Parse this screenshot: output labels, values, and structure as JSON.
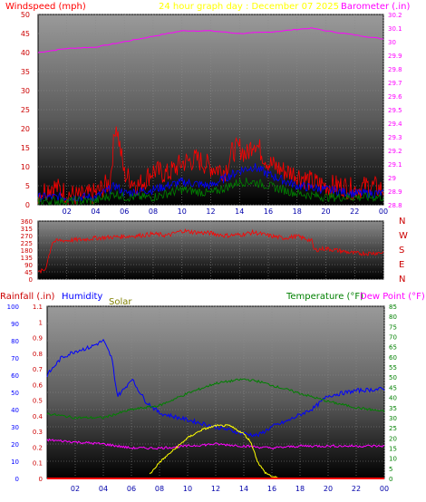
{
  "chart_data": [
    {
      "type": "line",
      "header": {
        "left": "Windspeed (mph)",
        "center": "24 hour graph day : December 07 2025",
        "right": "Barometer (.in)"
      },
      "x_ticks": [
        "02",
        "04",
        "06",
        "08",
        "10",
        "12",
        "14",
        "16",
        "18",
        "20",
        "22",
        "00"
      ],
      "y_left": {
        "range": [
          0,
          50
        ],
        "ticks": [
          "0",
          "5",
          "10",
          "15",
          "20",
          "25",
          "30",
          "35",
          "40",
          "45",
          "50"
        ]
      },
      "y_right": {
        "range": [
          28.8,
          30.2
        ],
        "ticks": [
          "28.8",
          "28.9",
          "29",
          "29.1",
          "29.2",
          "29.3",
          "29.4",
          "29.5",
          "29.6",
          "29.7",
          "29.8",
          "29.9",
          "30",
          "30.1",
          "30.2"
        ]
      },
      "series": [
        {
          "name": "Barometer (.in)",
          "color": "#ff00ff",
          "axis": "right",
          "x": [
            0,
            2,
            4,
            6,
            8,
            10,
            12,
            14,
            16,
            18,
            19,
            20,
            22,
            24
          ],
          "y": [
            29.92,
            29.95,
            29.96,
            30.0,
            30.04,
            30.08,
            30.08,
            30.06,
            30.07,
            30.09,
            30.1,
            30.08,
            30.05,
            30.02
          ]
        },
        {
          "name": "Windspeed (mph)",
          "color": "#ff0000",
          "axis": "left",
          "x": [
            0,
            1,
            2,
            3,
            4,
            5,
            5.4,
            6,
            7,
            8,
            9,
            10,
            11,
            12,
            13,
            13.5,
            14,
            14.5,
            15,
            15.5,
            16,
            17,
            18,
            19,
            20,
            21,
            22,
            23,
            24
          ],
          "y": [
            3,
            5,
            3,
            2,
            3,
            6,
            22,
            8,
            5,
            9,
            8,
            11,
            12,
            10,
            9,
            14,
            15,
            13,
            17,
            14,
            11,
            9,
            8,
            6,
            5,
            5,
            4,
            5,
            4
          ]
        },
        {
          "name": "Wind gust average",
          "color": "#0000ff",
          "axis": "left",
          "x": [
            0,
            2,
            4,
            5.4,
            6,
            8,
            10,
            12,
            14,
            15,
            16,
            18,
            20,
            22,
            24
          ],
          "y": [
            2,
            2,
            2,
            5,
            3,
            4,
            6,
            5,
            9,
            10,
            8,
            5,
            4,
            3,
            3
          ]
        },
        {
          "name": "Wind average",
          "color": "#008000",
          "axis": "left",
          "x": [
            0,
            2,
            4,
            5.4,
            6,
            8,
            10,
            12,
            14,
            15,
            16,
            18,
            20,
            22,
            24
          ],
          "y": [
            1,
            1,
            1,
            3,
            2,
            2,
            4,
            3,
            6,
            6,
            5,
            3,
            2,
            2,
            2
          ]
        }
      ]
    },
    {
      "type": "line",
      "header": {
        "right_labels": [
          "N",
          "W",
          "S",
          "E",
          "N"
        ]
      },
      "x_ticks": [
        "02",
        "04",
        "06",
        "08",
        "10",
        "12",
        "14",
        "16",
        "18",
        "20",
        "22",
        "00"
      ],
      "y_left": {
        "range": [
          0,
          360
        ],
        "ticks": [
          "0",
          "45",
          "90",
          "135",
          "180",
          "225",
          "270",
          "315",
          "360"
        ]
      },
      "series": [
        {
          "name": "Wind direction",
          "color": "#ff0000",
          "x": [
            0,
            0.5,
            1,
            1.5,
            2,
            3,
            4,
            5,
            6,
            7,
            8,
            9,
            10,
            11,
            12,
            13,
            14,
            15,
            16,
            17,
            18,
            19,
            19.2,
            20,
            21,
            22,
            23,
            24
          ],
          "y": [
            40,
            60,
            230,
            240,
            240,
            245,
            255,
            260,
            265,
            270,
            280,
            270,
            300,
            290,
            285,
            270,
            275,
            290,
            270,
            255,
            265,
            240,
            180,
            190,
            175,
            160,
            160,
            165
          ]
        }
      ]
    },
    {
      "type": "line",
      "header": {
        "left_red": "Rainfall (.in)",
        "left_blue": "Humidity",
        "left_olive": "Solar",
        "right_green": "Temperature (°F)",
        "right_magenta": "Dew Point (°F)"
      },
      "x_ticks": [
        "02",
        "04",
        "06",
        "08",
        "10",
        "12",
        "14",
        "16",
        "18",
        "20",
        "22",
        "00"
      ],
      "y_humidity": {
        "range": [
          0,
          100
        ],
        "ticks": [
          "0",
          "10",
          "20",
          "30",
          "40",
          "50",
          "60",
          "70",
          "80",
          "90",
          "100"
        ]
      },
      "y_rain": {
        "range": [
          0,
          1.1
        ],
        "ticks": [
          "0",
          "0.1",
          "0.2",
          "0.3",
          "0.4",
          "0.5",
          "0.6",
          "0.7",
          "0.8",
          "0.9",
          "1",
          "1.1"
        ]
      },
      "y_temp": {
        "range": [
          0,
          85
        ],
        "ticks": [
          "0",
          "5",
          "10",
          "15",
          "20",
          "25",
          "30",
          "35",
          "40",
          "45",
          "50",
          "55",
          "60",
          "65",
          "70",
          "75",
          "80",
          "85"
        ]
      },
      "series": [
        {
          "name": "Humidity",
          "color": "#0000ff",
          "axis": "humidity",
          "x": [
            0,
            1,
            2,
            3,
            4,
            4.6,
            5,
            5.5,
            6,
            7,
            8,
            10,
            12,
            14,
            15,
            16,
            17,
            18,
            19,
            20,
            22,
            24
          ],
          "y": [
            60,
            70,
            74,
            76,
            80,
            70,
            48,
            52,
            58,
            45,
            38,
            34,
            30,
            26,
            25,
            30,
            33,
            37,
            41,
            48,
            51,
            52
          ]
        },
        {
          "name": "Temperature (°F)",
          "color": "#008000",
          "axis": "temp",
          "x": [
            0,
            2,
            4,
            6,
            8,
            10,
            12,
            14,
            15,
            16,
            18,
            20,
            22,
            24
          ],
          "y": [
            32,
            30,
            30,
            34,
            36,
            42,
            47,
            49,
            48,
            46,
            42,
            38,
            35,
            33
          ]
        },
        {
          "name": "Dew Point (°F)",
          "color": "#ff00ff",
          "axis": "temp",
          "x": [
            0,
            2,
            4,
            6,
            8,
            10,
            12,
            14,
            16,
            18,
            20,
            22,
            24
          ],
          "y": [
            19,
            18,
            17,
            15,
            15,
            16,
            17,
            16,
            15,
            16,
            16,
            16,
            16
          ]
        },
        {
          "name": "Solar",
          "color": "#ffff00",
          "axis": "temp",
          "x": [
            7.3,
            8,
            9,
            10,
            11,
            12,
            13,
            14,
            14.5,
            15,
            15.5,
            16,
            16.5
          ],
          "y": [
            2,
            8,
            14,
            20,
            24,
            26,
            26,
            22,
            18,
            8,
            3,
            1,
            0
          ]
        },
        {
          "name": "Rainfall (.in)",
          "color": "#ff0000",
          "axis": "rain",
          "x": [
            0,
            24
          ],
          "y": [
            0,
            0
          ]
        }
      ]
    }
  ]
}
